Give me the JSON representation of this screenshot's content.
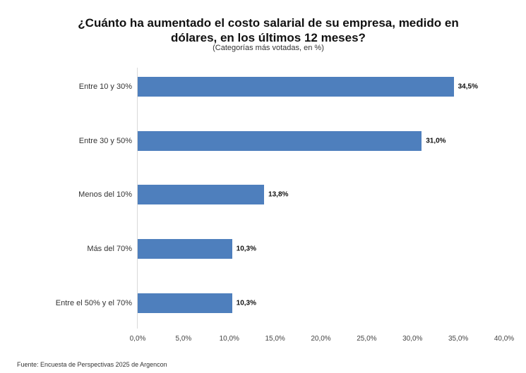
{
  "chart_data": {
    "type": "bar",
    "orientation": "horizontal",
    "title": "¿Cuánto ha aumentado el costo salarial de su empresa, medido en dólares, en los últimos 12 meses?",
    "title_line1": "¿Cuánto ha aumentado el costo salarial de su empresa, medido en",
    "title_line2": "dólares, en los últimos 12 meses?",
    "subtitle": "(Categorías más votadas, en %)",
    "categories": [
      "Entre 10 y 30%",
      "Entre 30 y 50%",
      "Menos del 10%",
      "Más del 70%",
      "Entre el 50% y el 70%"
    ],
    "values": [
      34.5,
      31.0,
      13.8,
      10.3,
      10.3
    ],
    "value_labels": [
      "34,5%",
      "31,0%",
      "13,8%",
      "10,3%",
      "10,3%"
    ],
    "xlabel": "",
    "ylabel": "",
    "xlim": [
      0,
      40
    ],
    "x_ticks": [
      "0,0%",
      "5,0%",
      "10,0%",
      "15,0%",
      "20,0%",
      "25,0%",
      "30,0%",
      "35,0%",
      "40,0%"
    ],
    "grid": false,
    "legend": null,
    "bar_color": "#4e7fbd",
    "source": "Fuente: Encuesta de Perspectivas 2025 de Argencon"
  }
}
